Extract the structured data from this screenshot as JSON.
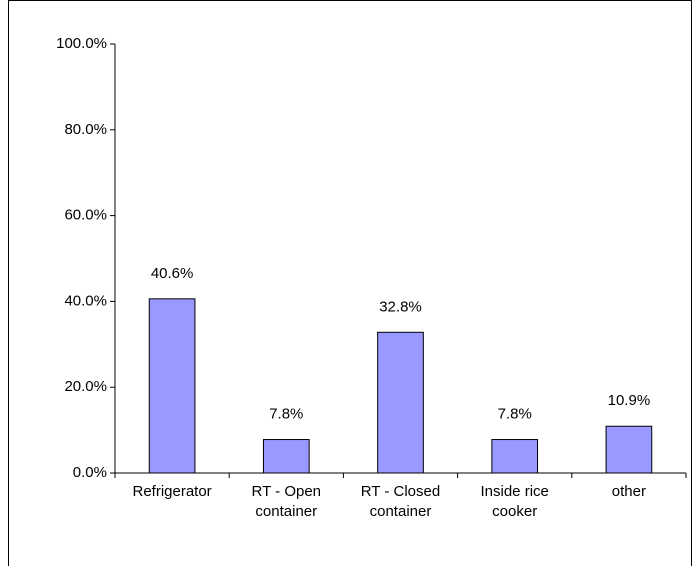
{
  "chart_data": {
    "type": "bar",
    "categories": [
      "Refrigerator",
      "RT - Open container",
      "RT - Closed container",
      "Inside rice cooker",
      "other"
    ],
    "values": [
      40.6,
      7.8,
      32.8,
      7.8,
      10.9
    ],
    "value_labels": [
      "40.6%",
      "7.8%",
      "32.8%",
      "7.8%",
      "10.9%"
    ],
    "color": "#9999ff",
    "ylim": [
      0,
      100
    ],
    "yticks": [
      {
        "value": 0,
        "label": "0.0%"
      },
      {
        "value": 20,
        "label": "20.0%"
      },
      {
        "value": 40,
        "label": "40.0%"
      },
      {
        "value": 60,
        "label": "60.0%"
      },
      {
        "value": 80,
        "label": "80.0%"
      },
      {
        "value": 100,
        "label": "100.0%"
      }
    ],
    "grid": false
  }
}
